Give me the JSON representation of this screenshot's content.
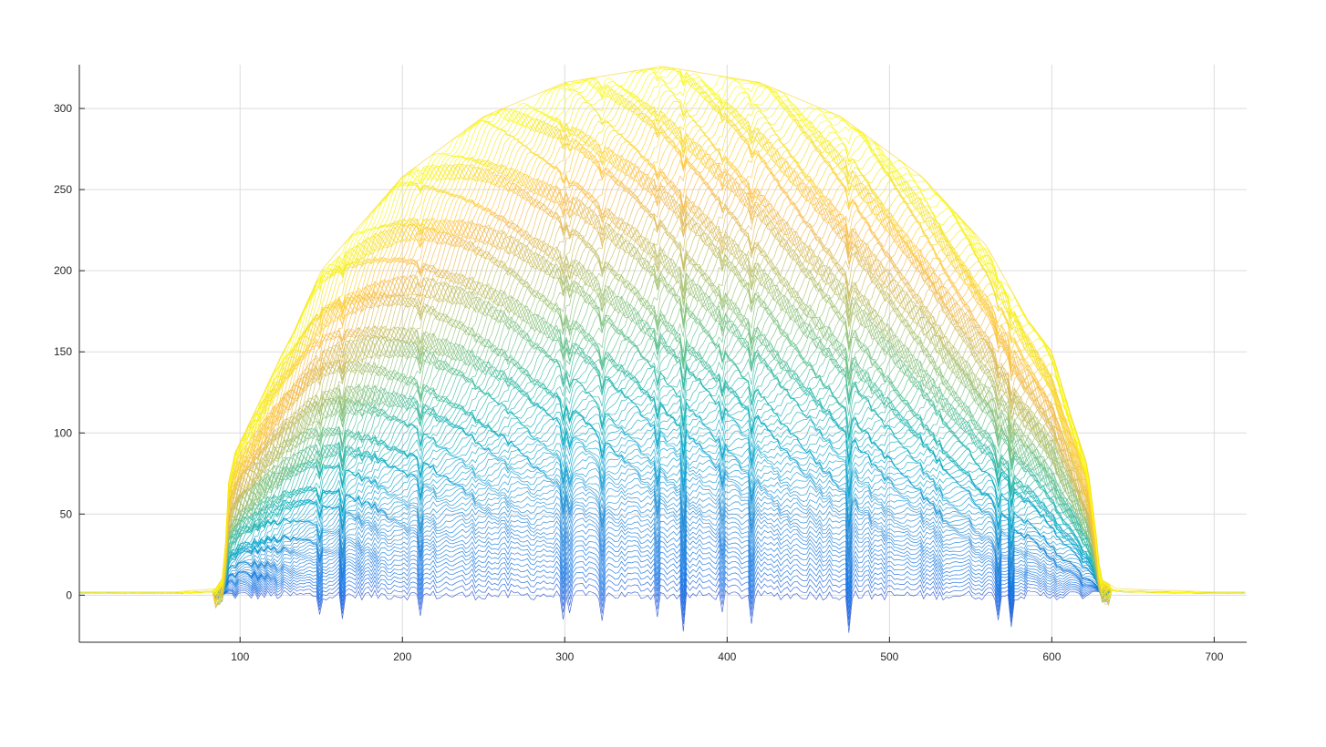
{
  "chart_data": {
    "type": "line",
    "title": "",
    "xlabel": "",
    "ylabel": "",
    "xlim": [
      1,
      720
    ],
    "ylim": [
      -29,
      327
    ],
    "xticks": [
      100,
      200,
      300,
      400,
      500,
      600,
      700
    ],
    "yticks": [
      0,
      50,
      100,
      150,
      200,
      250,
      300
    ],
    "grid": true,
    "colormap": "parula",
    "legend": "none",
    "series_description": {
      "count": 300,
      "nonzero_x_range": [
        90,
        630
      ],
      "peak_x": 360,
      "peak_y": 326,
      "baseline_y": 0,
      "min_y": -26
    },
    "envelope": [
      {
        "x": 1,
        "y": 2
      },
      {
        "x": 60,
        "y": 2
      },
      {
        "x": 85,
        "y": 4
      },
      {
        "x": 90,
        "y": 12
      },
      {
        "x": 93,
        "y": 70
      },
      {
        "x": 97,
        "y": 88
      },
      {
        "x": 110,
        "y": 115
      },
      {
        "x": 125,
        "y": 147
      },
      {
        "x": 132,
        "y": 160
      },
      {
        "x": 150,
        "y": 200
      },
      {
        "x": 160,
        "y": 212
      },
      {
        "x": 200,
        "y": 258
      },
      {
        "x": 250,
        "y": 295
      },
      {
        "x": 300,
        "y": 316
      },
      {
        "x": 360,
        "y": 326
      },
      {
        "x": 420,
        "y": 316
      },
      {
        "x": 470,
        "y": 295
      },
      {
        "x": 520,
        "y": 258
      },
      {
        "x": 560,
        "y": 215
      },
      {
        "x": 585,
        "y": 170
      },
      {
        "x": 600,
        "y": 150
      },
      {
        "x": 612,
        "y": 110
      },
      {
        "x": 622,
        "y": 80
      },
      {
        "x": 627,
        "y": 40
      },
      {
        "x": 630,
        "y": 10
      },
      {
        "x": 640,
        "y": 4
      },
      {
        "x": 700,
        "y": 2
      },
      {
        "x": 720,
        "y": 2
      }
    ]
  }
}
